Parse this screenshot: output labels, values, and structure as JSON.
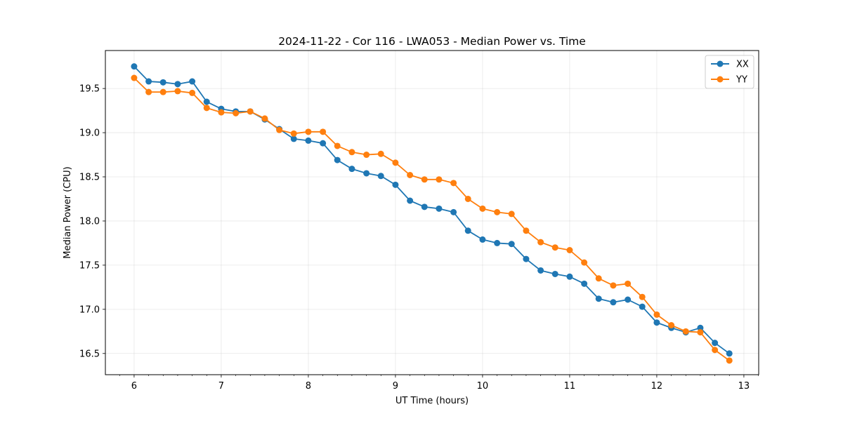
{
  "chart_data": {
    "type": "line",
    "title": "2024-11-22 - Cor 116 - LWA053 - Median Power vs. Time",
    "xlabel": "UT Time (hours)",
    "ylabel": "Median Power (CPU)",
    "xlim": [
      5.67,
      13.17
    ],
    "ylim": [
      16.26,
      19.93
    ],
    "xticks": [
      6,
      7,
      8,
      9,
      10,
      11,
      12,
      13
    ],
    "xtick_labels": [
      "6",
      "7",
      "8",
      "9",
      "10",
      "11",
      "12",
      "13"
    ],
    "yticks": [
      16.5,
      17.0,
      17.5,
      18.0,
      18.5,
      19.0,
      19.5
    ],
    "ytick_labels": [
      "16.5",
      "17.0",
      "17.5",
      "18.0",
      "18.5",
      "19.0",
      "19.5"
    ],
    "grid": true,
    "legend_position": "top-right",
    "x": [
      6.0,
      6.167,
      6.333,
      6.5,
      6.667,
      6.833,
      7.0,
      7.167,
      7.333,
      7.5,
      7.667,
      7.833,
      8.0,
      8.167,
      8.333,
      8.5,
      8.667,
      8.833,
      9.0,
      9.167,
      9.333,
      9.5,
      9.667,
      9.833,
      10.0,
      10.167,
      10.333,
      10.5,
      10.667,
      10.833,
      11.0,
      11.167,
      11.333,
      11.5,
      11.667,
      11.833,
      12.0,
      12.167,
      12.333,
      12.5,
      12.667,
      12.833
    ],
    "series": [
      {
        "name": "XX",
        "color": "#1f77b4",
        "values": [
          19.75,
          19.58,
          19.57,
          19.55,
          19.58,
          19.35,
          19.27,
          19.24,
          19.24,
          19.15,
          19.04,
          18.93,
          18.91,
          18.88,
          18.69,
          18.59,
          18.54,
          18.51,
          18.41,
          18.23,
          18.16,
          18.14,
          18.1,
          17.89,
          17.79,
          17.75,
          17.74,
          17.57,
          17.44,
          17.4,
          17.37,
          17.29,
          17.12,
          17.08,
          17.11,
          17.03,
          16.85,
          16.79,
          16.74,
          16.79,
          16.62,
          16.5
        ]
      },
      {
        "name": "YY",
        "color": "#ff7f0e",
        "values": [
          19.62,
          19.46,
          19.46,
          19.47,
          19.45,
          19.28,
          19.23,
          19.22,
          19.24,
          19.16,
          19.03,
          18.99,
          19.01,
          19.01,
          18.85,
          18.78,
          18.75,
          18.76,
          18.66,
          18.52,
          18.47,
          18.47,
          18.43,
          18.25,
          18.14,
          18.1,
          18.08,
          17.89,
          17.76,
          17.7,
          17.67,
          17.53,
          17.35,
          17.27,
          17.29,
          17.14,
          16.94,
          16.82,
          16.75,
          16.74,
          16.54,
          16.42
        ]
      }
    ]
  }
}
